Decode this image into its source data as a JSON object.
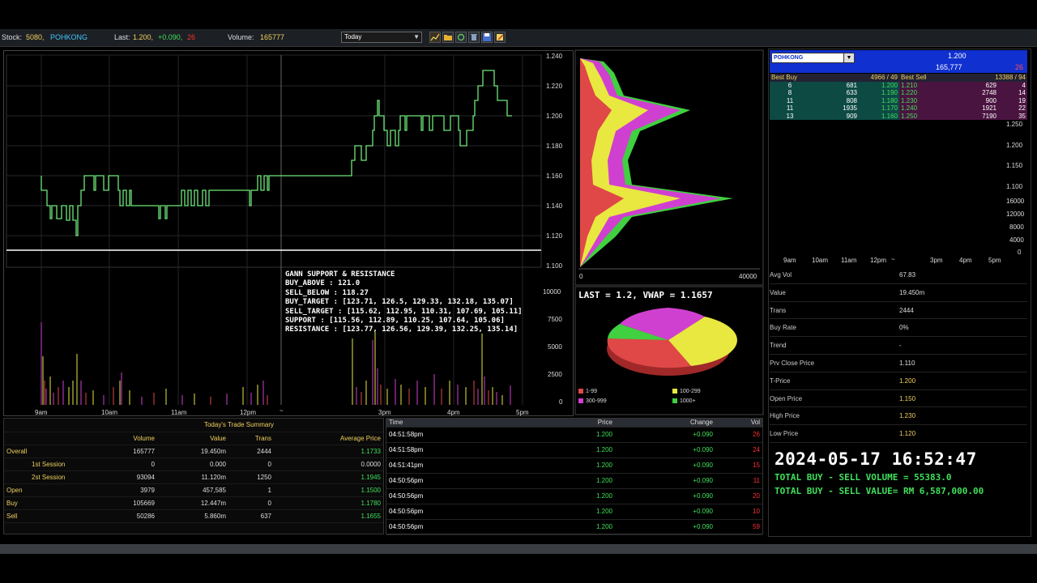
{
  "toolbar": {
    "stock_label": "Stock:",
    "stock_code": "5080,",
    "stock_name": "POHKONG",
    "last_label": "Last:",
    "last_price": "1.200,",
    "last_change": "+0.090,",
    "last_trades": "26",
    "volume_label": "Volume:",
    "volume_value": "165777",
    "period_value": "Today"
  },
  "price_chart": {
    "y_ticks": [
      "1.240",
      "1.220",
      "1.200",
      "1.180",
      "1.160",
      "1.140",
      "1.120",
      "1.100"
    ],
    "x_ticks": [
      "9am",
      "10am",
      "11am",
      "12pm",
      "~",
      "3pm",
      "4pm",
      "5pm"
    ],
    "vol_ticks": [
      "10000",
      "7500",
      "5000",
      "2500",
      "0"
    ]
  },
  "gann": {
    "title": "GANN SUPPORT & RESISTANCE",
    "buy_above": "BUY_ABOVE : 121.0",
    "sell_below": "SELL_BELOW : 118.27",
    "buy_target": "BUY_TARGET : [123.71, 126.5, 129.33, 132.18, 135.07]",
    "sell_target": "SELL_TARGET : [115.62, 112.95, 110.31, 107.69, 105.11]",
    "support": "SUPPORT : [115.56, 112.89, 110.25, 107.64, 105.06]",
    "resistance": "RESISTANCE : [123.77, 126.56, 129.39, 132.25, 135.14]"
  },
  "volume_profile": {
    "x_ticks": [
      "0",
      "40000"
    ],
    "last_vwap": "LAST = 1.2, VWAP = 1.1657",
    "legend": [
      {
        "label": "1-99",
        "color": "#e04848"
      },
      {
        "label": "100-299",
        "color": "#e8e840"
      },
      {
        "label": "300-999",
        "color": "#d040d0"
      },
      {
        "label": "1000+",
        "color": "#40d040"
      }
    ]
  },
  "summary": {
    "title": "Today's Trade Summary",
    "headers": [
      "Volume",
      "Value",
      "Trans",
      "Average Price"
    ],
    "rows": [
      {
        "label": "Overall",
        "volume": "165777",
        "value": "19.450m",
        "trans": "2444",
        "avg": "1.1733"
      },
      {
        "label": "1st Session",
        "volume": "0",
        "value": "0.000",
        "trans": "0",
        "avg": "0.0000"
      },
      {
        "label": "2st Session",
        "volume": "93094",
        "value": "11.120m",
        "trans": "1250",
        "avg": "1.1945"
      },
      {
        "label": "Open",
        "volume": "3979",
        "value": "457,585",
        "trans": "1",
        "avg": "1.1500"
      },
      {
        "label": "Buy",
        "volume": "105669",
        "value": "12.447m",
        "trans": "0",
        "avg": "1.1780"
      },
      {
        "label": "Sell",
        "volume": "50286",
        "value": "5.860m",
        "trans": "637",
        "avg": "1.1655"
      }
    ]
  },
  "time_sales": {
    "headers": [
      "Time",
      "Price",
      "Change",
      "Vol"
    ],
    "rows": [
      {
        "time": "04:51:58pm",
        "price": "1.200",
        "change": "+0.090",
        "vol": "26"
      },
      {
        "time": "04:51:58pm",
        "price": "1.200",
        "change": "+0.090",
        "vol": "24"
      },
      {
        "time": "04:51:41pm",
        "price": "1.200",
        "change": "+0.090",
        "vol": "15"
      },
      {
        "time": "04:50:56pm",
        "price": "1.200",
        "change": "+0.090",
        "vol": "11"
      },
      {
        "time": "04:50:56pm",
        "price": "1.200",
        "change": "+0.090",
        "vol": "20"
      },
      {
        "time": "04:50:56pm",
        "price": "1.200",
        "change": "+0.090",
        "vol": "10"
      },
      {
        "time": "04:50:56pm",
        "price": "1.200",
        "change": "+0.090",
        "vol": "59"
      }
    ]
  },
  "quote": {
    "symbol": "POHKONG",
    "price": "1.200",
    "volume": "165,777",
    "trades": "26"
  },
  "depth": {
    "best_buy_label": "Best Buy",
    "best_buy_summary": "4966 / 49",
    "best_sell_label": "Best Sell",
    "best_sell_summary": "13388 / 94",
    "rows": [
      {
        "bc": "6",
        "bq": "681",
        "bp": "1.200",
        "sp": "1.210",
        "sq": "629",
        "sc": "4"
      },
      {
        "bc": "8",
        "bq": "633",
        "bp": "1.190",
        "sp": "1.220",
        "sq": "2748",
        "sc": "14"
      },
      {
        "bc": "11",
        "bq": "808",
        "bp": "1.180",
        "sp": "1.230",
        "sq": "900",
        "sc": "19"
      },
      {
        "bc": "11",
        "bq": "1935",
        "bp": "1.170",
        "sp": "1.240",
        "sq": "1921",
        "sc": "22"
      },
      {
        "bc": "13",
        "bq": "909",
        "bp": "1.160",
        "sp": "1.250",
        "sq": "7190",
        "sc": "35"
      }
    ]
  },
  "mini_chart": {
    "y_ticks": [
      "1.250",
      "1.200",
      "1.150",
      "1.100"
    ],
    "vol_ticks": [
      "16000",
      "12000",
      "8000",
      "4000",
      "0"
    ],
    "x_ticks": [
      "9am",
      "10am",
      "11am",
      "12pm",
      "~",
      "3pm",
      "4pm",
      "5pm"
    ]
  },
  "stats": [
    {
      "key": "Avg Vol",
      "value": "67.83"
    },
    {
      "key": "Value",
      "value": "19.450m"
    },
    {
      "key": "Trans",
      "value": "2444"
    },
    {
      "key": "Buy Rate",
      "value": "0%"
    },
    {
      "key": "Trend",
      "value": "-"
    },
    {
      "key": "Prv Close Price",
      "value": "1.110"
    },
    {
      "key": "T-Price",
      "value": "1.200"
    },
    {
      "key": "Open Price",
      "value": "1.150"
    },
    {
      "key": "High Price",
      "value": "1.230"
    },
    {
      "key": "Low Price",
      "value": "1.120"
    }
  ],
  "overlay": {
    "datetime": "2024-05-17 16:52:47",
    "buy_sell_volume": "TOTAL BUY - SELL VOLUME = 55383.0",
    "buy_sell_value": "TOTAL BUY - SELL VALUE= RM 6,587,000.00"
  },
  "colors": {
    "up": "#3fe05a",
    "down": "#ff3030",
    "label": "#f0d060",
    "quote_bg": "#1030d0"
  }
}
